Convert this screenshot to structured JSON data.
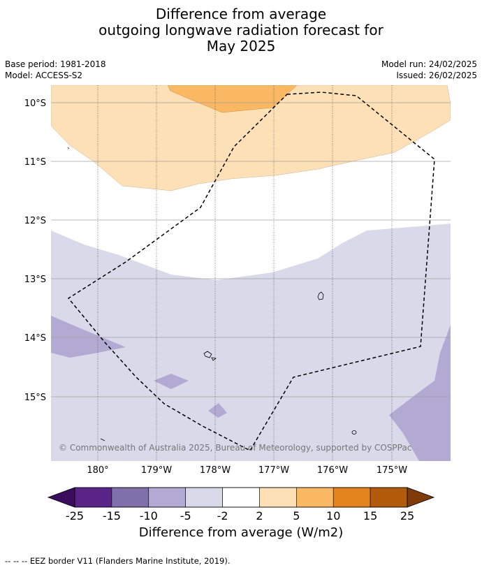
{
  "title": {
    "line1": "Difference from average",
    "line2": "outgoing longwave radiation forecast for",
    "line3": "May 2025"
  },
  "meta": {
    "base_period": "Base period: 1981-2018",
    "model": "Model: ACCESS-S2",
    "model_run": "Model run: 24/02/2025",
    "issued": "Issued: 26/02/2025"
  },
  "map": {
    "lat_labels": [
      "10°S",
      "11°S",
      "12°S",
      "13°S",
      "14°S",
      "15°S"
    ],
    "lon_labels": [
      "180°",
      "179°W",
      "178°W",
      "177°W",
      "176°W",
      "175°W"
    ],
    "copyright": "© Commonwealth of Australia 2025, Bureau of Meteorology, supported by COSPPac"
  },
  "colorbar": {
    "ticks": [
      "-25",
      "-15",
      "-10",
      "-5",
      "-2",
      "2",
      "5",
      "10",
      "15",
      "25"
    ],
    "label": "Difference from average (W/m2)",
    "colors": [
      "#3b0d5e",
      "#5a2489",
      "#7f6faa",
      "#b2aad3",
      "#d9d9ea",
      "#ffffff",
      "#fde0b6",
      "#fbb862",
      "#e3831b",
      "#b45a0b",
      "#7f3b08"
    ]
  },
  "legend_footer": "EEZ border V11 (Flanders Marine Institute, 2019).",
  "legend_footer_prefix": "--  --  --"
}
